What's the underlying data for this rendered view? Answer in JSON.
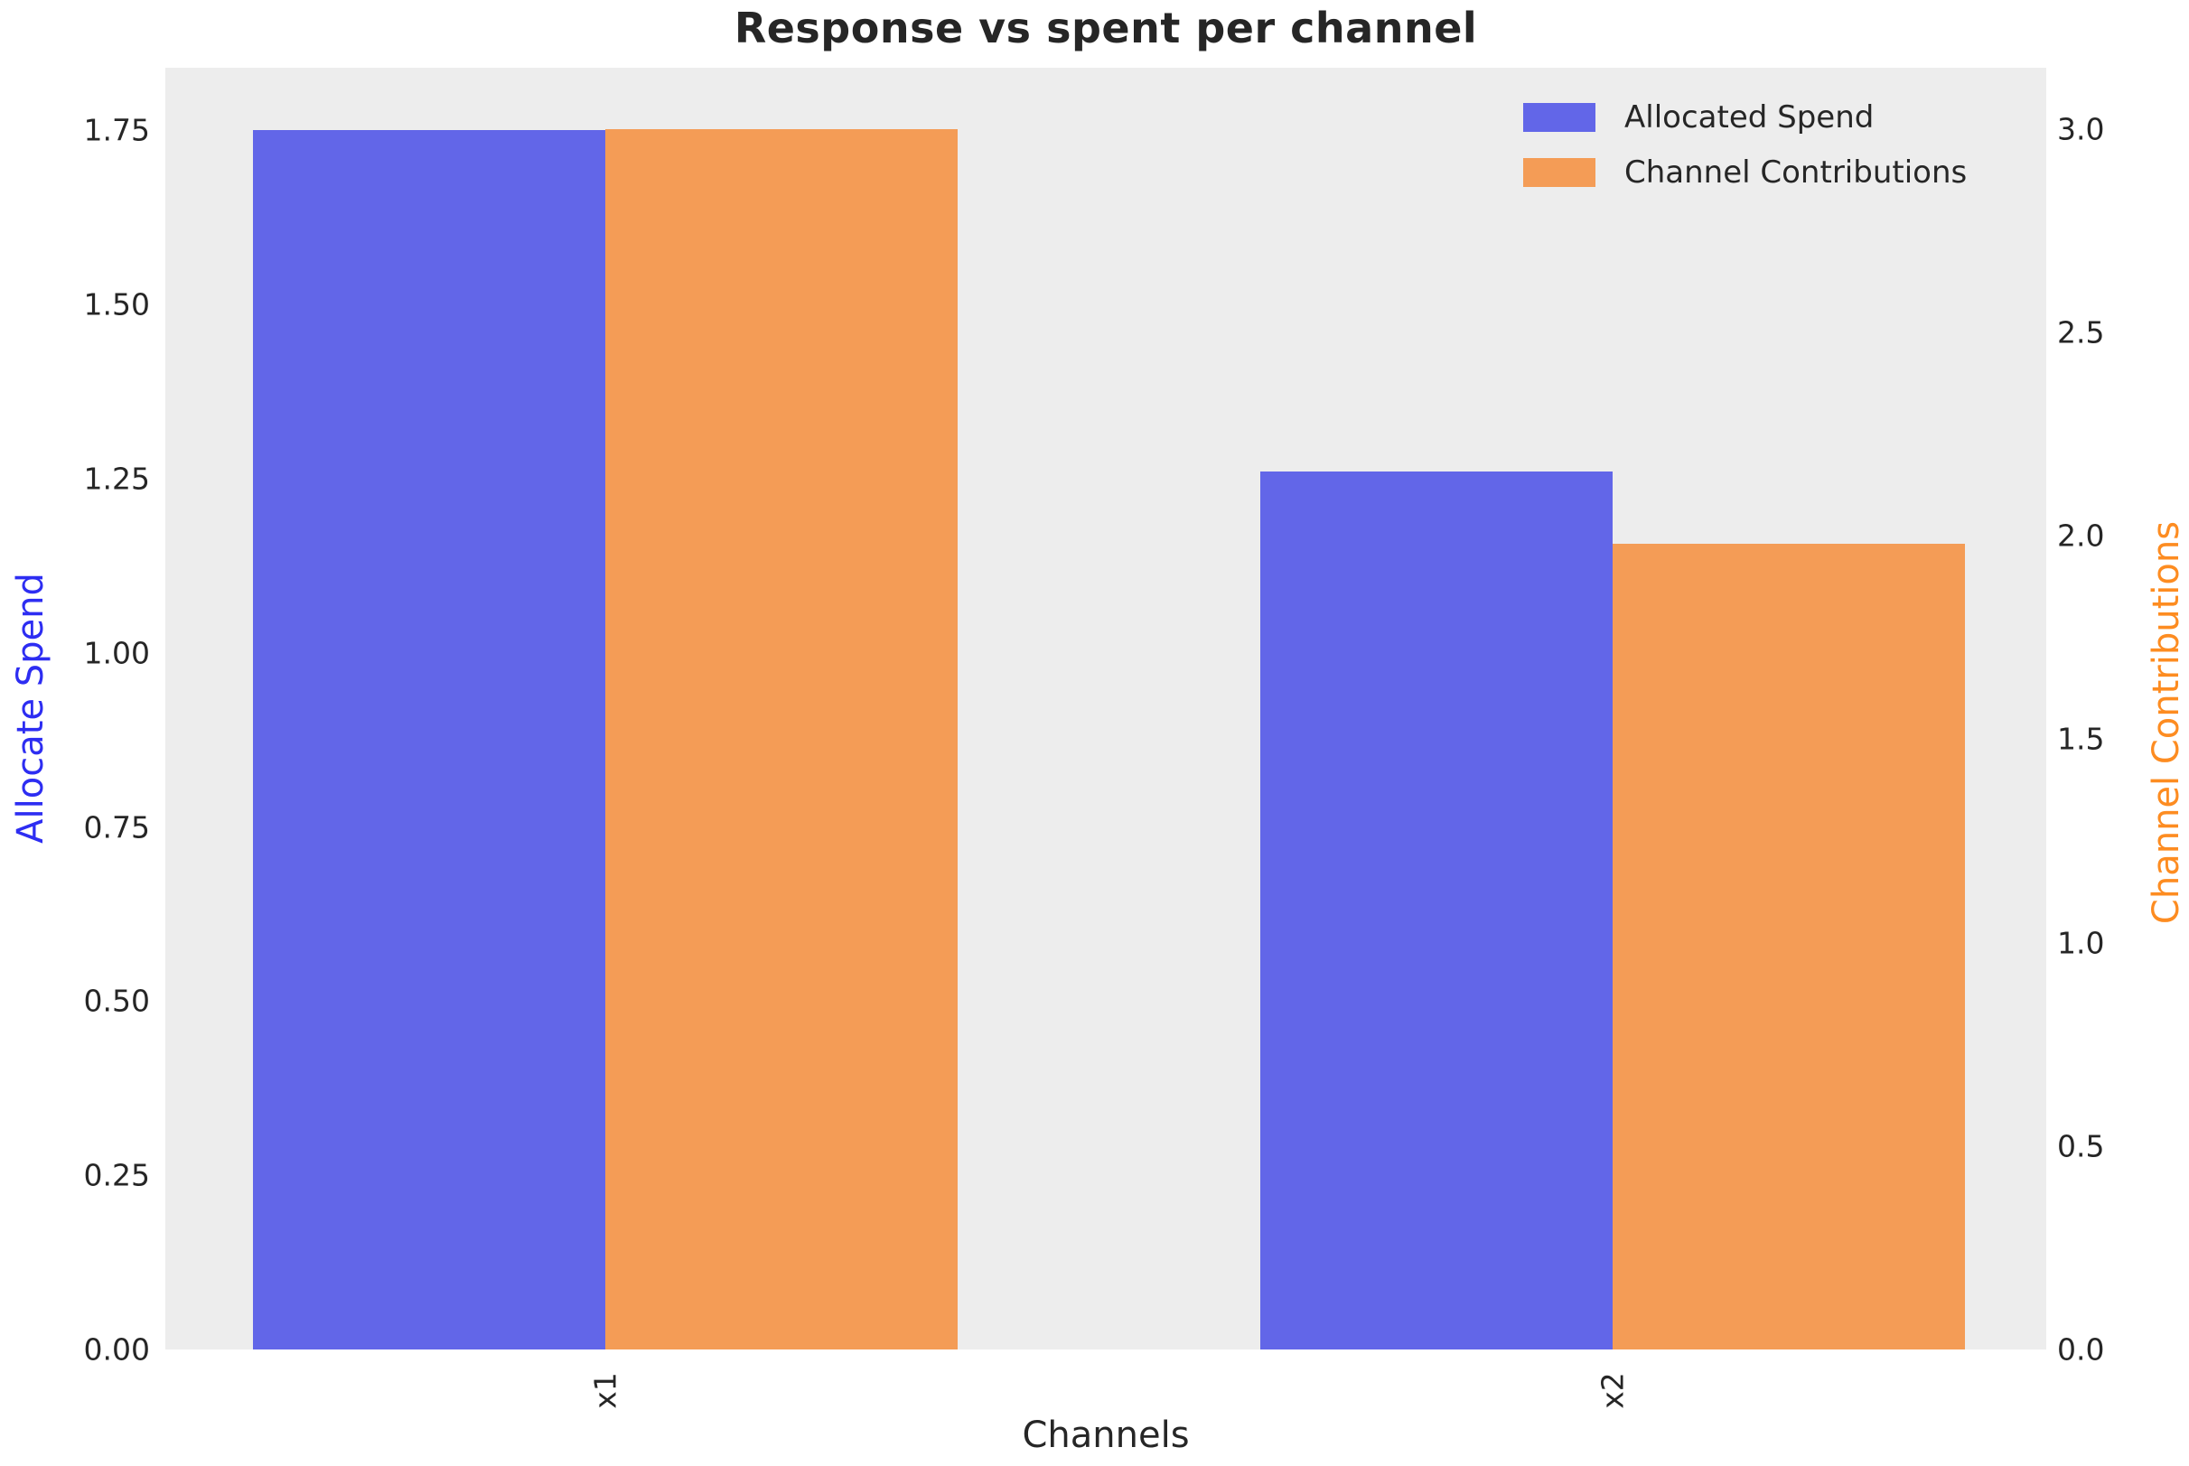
{
  "chart_data": {
    "type": "bar",
    "title": "Response vs spent per channel",
    "xlabel": "Channels",
    "categories": [
      "x1",
      "x2"
    ],
    "series": [
      {
        "name": "Allocated Spend",
        "axis": "left",
        "color": "#6266e8",
        "values": [
          1.75,
          1.26
        ]
      },
      {
        "name": "Channel Contributions",
        "axis": "right",
        "color": "#f49c56",
        "values": [
          3.0,
          1.98
        ]
      }
    ],
    "axes": {
      "left": {
        "label": "Allocate Spend",
        "label_color": "#2d2df2",
        "tick_labels": [
          "0.00",
          "0.25",
          "0.50",
          "0.75",
          "1.00",
          "1.25",
          "1.50",
          "1.75"
        ],
        "tick_values": [
          0,
          0.25,
          0.5,
          0.75,
          1.0,
          1.25,
          1.5,
          1.75
        ],
        "range": [
          0,
          1.84
        ]
      },
      "right": {
        "label": "Channel Contributions",
        "label_color": "#fd8c21",
        "tick_labels": [
          "0.0",
          "0.5",
          "1.0",
          "1.5",
          "2.0",
          "2.5",
          "3.0"
        ],
        "tick_values": [
          0,
          0.5,
          1.0,
          1.5,
          2.0,
          2.5,
          3.0
        ],
        "range": [
          0,
          3.15
        ]
      }
    },
    "legend": {
      "position": "upper-right",
      "entries": [
        {
          "label": "Allocated Spend",
          "color": "#6266e8"
        },
        {
          "label": "Channel Contributions",
          "color": "#f49c56"
        }
      ]
    },
    "plot_background": "#ededed",
    "figure_background": "#ffffff",
    "text_color": "#262626",
    "grid": false,
    "layout": {
      "group_centers_frac": [
        0.234,
        0.7695
      ],
      "bar_width_frac": 0.1873
    }
  }
}
